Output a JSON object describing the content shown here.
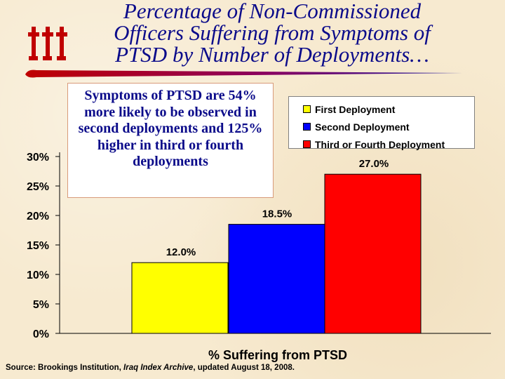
{
  "title": {
    "line1": "Percentage of Non-Commissioned",
    "line2": "Officers Suffering from Symptoms of",
    "line3": "PTSD by Number of Deployments…"
  },
  "callout": {
    "text": "Symptoms of PTSD are 54% more likely to be observed in second deployments and 125% higher in third or fourth deployments"
  },
  "source": {
    "prefix": "Source:  Brookings Institution, ",
    "italic": "Iraq Index Archive",
    "suffix": ", updated August 18, 2008."
  },
  "colors": {
    "title": "#0b0b8a",
    "first": "#ffff00",
    "second": "#0000ff",
    "third": "#ff0000",
    "rule": "#c00000"
  },
  "chart_data": {
    "type": "bar",
    "categories": [
      "First Deployment",
      "Second Deployment",
      "Third or Fourth Deployment"
    ],
    "values": [
      12.0,
      18.5,
      27.0
    ],
    "data_labels": [
      "12.0%",
      "18.5%",
      "27.0%"
    ],
    "xlabel": "% Suffering from PTSD",
    "ylabel": "",
    "ylim": [
      0,
      30
    ],
    "ticks": [
      0,
      5,
      10,
      15,
      20,
      25,
      30
    ],
    "tick_labels": [
      "0%",
      "5%",
      "10%",
      "15%",
      "20%",
      "25%",
      "30%"
    ],
    "legend": [
      "First Deployment",
      "Second Deployment",
      "Third or Fourth Deployment"
    ],
    "legend_position": "top-right",
    "grid": false
  }
}
